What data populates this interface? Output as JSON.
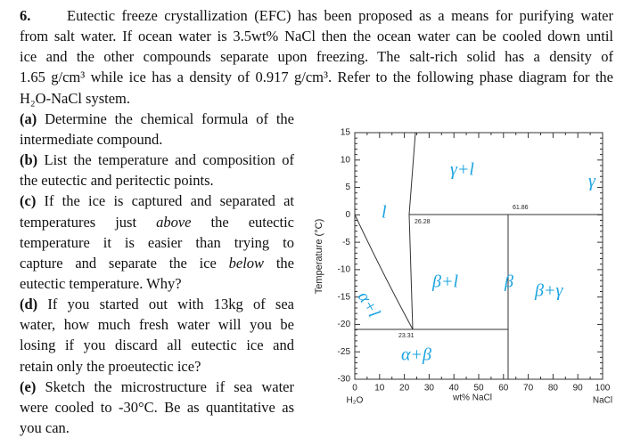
{
  "problem": {
    "number": "6.",
    "intro": [
      "Eutectic freeze crystallization (EFC) has been proposed as a means for purifying water",
      "from salt water. If ocean water is 3.5wt% NaCl then the ocean water can be cooled down until",
      "ice and the other compounds separate upon freezing. The salt-rich solid has a density of",
      "1.65 g/cm³ while ice has a density of 0.917 g/cm³. Refer to the following phase diagram for the",
      "H₂O-NaCl system."
    ],
    "parts": [
      {
        "label": "(a)",
        "lines": [
          [
            "Determine the chemical formula of the"
          ],
          [
            "intermediate compound."
          ]
        ]
      },
      {
        "label": "(b)",
        "lines": [
          [
            "List the temperature and composition of"
          ],
          [
            "the eutectic and peritectic points."
          ]
        ]
      },
      {
        "label": "(c)",
        "lines": [
          [
            "If the ice is captured and separated at"
          ],
          [
            "temperatures just ",
            {
              "italic": "above"
            },
            " the eutectic"
          ],
          [
            "temperature it is easier than trying to"
          ],
          [
            "capture and separate the ice ",
            {
              "italic": "below"
            },
            " the"
          ],
          [
            "eutectic temperature. Why?"
          ]
        ]
      },
      {
        "label": "(d)",
        "lines": [
          [
            "If you started out with 13kg of sea"
          ],
          [
            "water, how much fresh water will you be"
          ],
          [
            "losing if you discard all eutectic ice and"
          ],
          [
            "retain only the proeutectic ice?"
          ]
        ]
      },
      {
        "label": "(e)",
        "lines": [
          [
            "Sketch the microstructure if sea water"
          ],
          [
            "were cooled to -30°C. Be as quantitative as"
          ],
          [
            "you can."
          ]
        ]
      }
    ]
  },
  "diagram": {
    "ylabel": "Temperature (°C)",
    "xlabel": "wt% NaCl",
    "x_left_label": "H₂O",
    "x_right_label": "NaCl",
    "xlim": [
      0,
      100
    ],
    "ylim": [
      -30,
      15
    ],
    "xticks": [
      0,
      10,
      20,
      30,
      40,
      50,
      60,
      70,
      80,
      90,
      100
    ],
    "yticks": [
      -30,
      -25,
      -20,
      -15,
      -10,
      -5,
      0,
      5,
      10,
      15
    ],
    "point_labels": [
      "61.86",
      "26.28",
      "23.31"
    ],
    "handwritten": [
      "γ+l",
      "l",
      "β+l",
      "β+γ",
      "β",
      "γ",
      "α+l",
      "α+β"
    ]
  }
}
